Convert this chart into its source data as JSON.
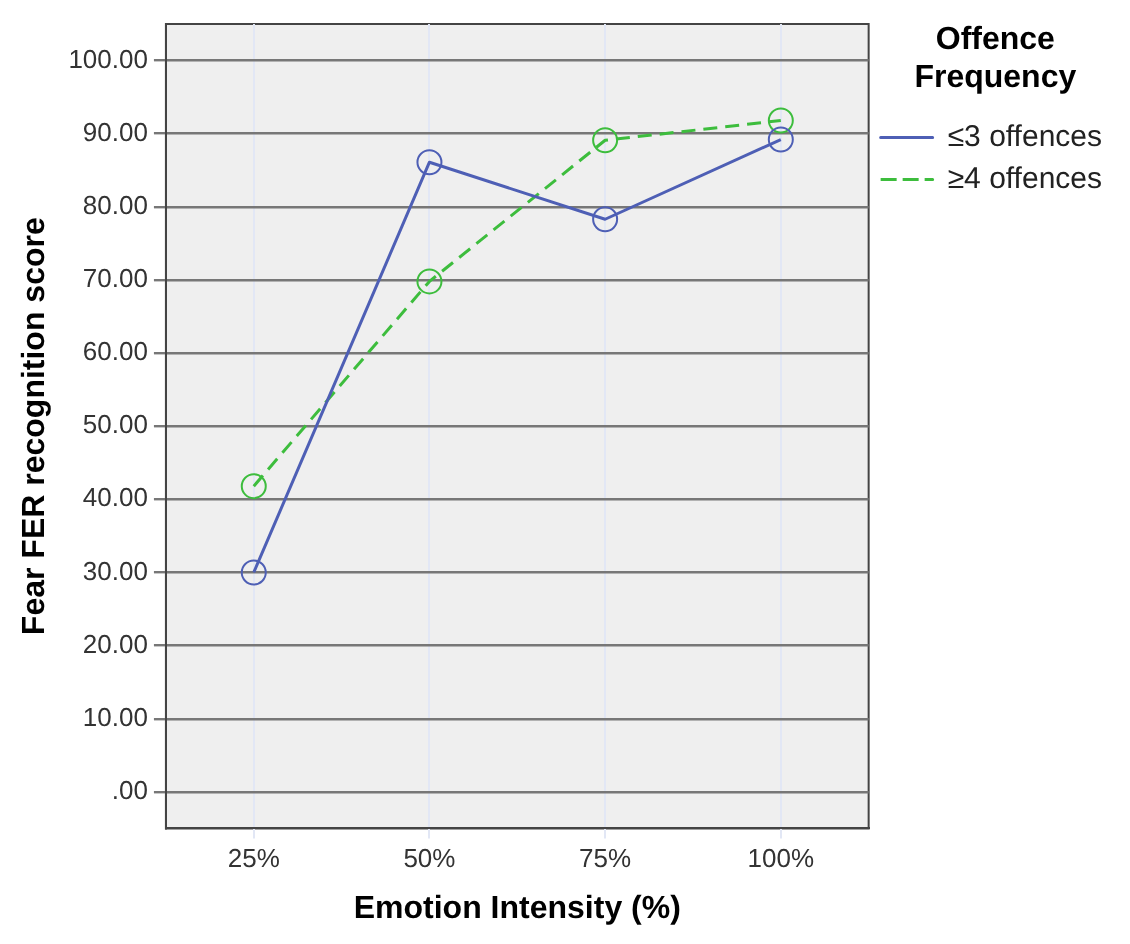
{
  "chart_data": {
    "type": "line",
    "xlabel": "Emotion Intensity (%)",
    "ylabel": "Fear FER recognition score",
    "legend_title": "Offence Frequency",
    "legend": "top right",
    "categories": [
      "25%",
      "50%",
      "75%",
      "100%"
    ],
    "series": [
      {
        "name": "≤3 offences",
        "color": "#4e5fb5",
        "line_style": "solid",
        "values": [
          30.0,
          86.1,
          78.3,
          89.2
        ]
      },
      {
        "name": "≥4 offences",
        "color": "#3dbd3d",
        "line_style": "dashed",
        "values": [
          41.8,
          69.8,
          89.1,
          91.8
        ]
      }
    ],
    "ylim": [
      -5,
      105
    ],
    "yticks": [
      {
        "value": 0,
        "label": ".00"
      },
      {
        "value": 10,
        "label": "10.00"
      },
      {
        "value": 20,
        "label": "20.00"
      },
      {
        "value": 30,
        "label": "30.00"
      },
      {
        "value": 40,
        "label": "40.00"
      },
      {
        "value": 50,
        "label": "50.00"
      },
      {
        "value": 60,
        "label": "60.00"
      },
      {
        "value": 70,
        "label": "70.00"
      },
      {
        "value": 80,
        "label": "80.00"
      },
      {
        "value": 90,
        "label": "90.00"
      },
      {
        "value": 100,
        "label": "100.00"
      }
    ],
    "grid": true,
    "marker": "circle"
  }
}
